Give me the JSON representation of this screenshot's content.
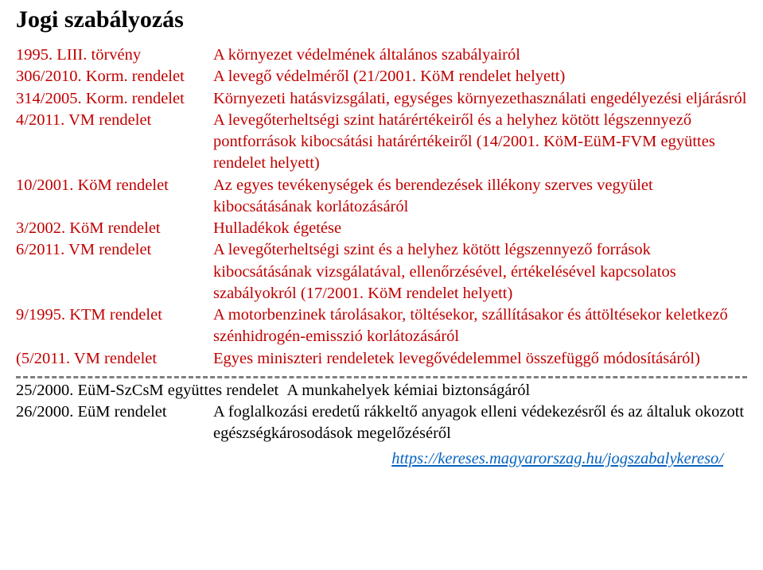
{
  "title": "Jogi szabályozás",
  "regs": [
    {
      "left": "1995. LIII. törvény",
      "right": "A környezet védelmének általános szabályairól",
      "leftColor": "#c00000",
      "rightColor": "#c00000"
    },
    {
      "left": "306/2010. Korm. rendelet",
      "right": "A levegő védelméről (21/2001. KöM rendelet helyett)",
      "leftColor": "#c00000",
      "rightColor": "#c00000"
    },
    {
      "left": "314/2005. Korm. rendelet",
      "right": "Környezeti hatásvizsgálati, egységes környezethasználati engedélyezési eljárásról",
      "leftColor": "#c00000",
      "rightColor": "#c00000"
    },
    {
      "left": "4/2011. VM rendelet",
      "right": "A levegőterheltségi szint határértékeiről és a helyhez kötött légszennyező pontforrások kibocsátási határértékeiről (14/2001. KöM-EüM-FVM együttes rendelet helyett)",
      "leftColor": "#c00000",
      "rightColor": "#c00000"
    },
    {
      "left": "10/2001. KöM rendelet",
      "right": "Az egyes tevékenységek és berendezések illékony szerves vegyület kibocsátásának korlátozásáról",
      "leftColor": "#c00000",
      "rightColor": "#c00000"
    },
    {
      "left": "3/2002. KöM rendelet",
      "right": "Hulladékok égetése",
      "leftColor": "#c00000",
      "rightColor": "#c00000"
    },
    {
      "left": "6/2011. VM rendelet",
      "right": "A levegőterheltségi szint és a helyhez kötött légszennyező források kibocsátásának vizsgálatával, ellenőrzésével, értékelésével kapcsolatos szabályokról  (17/2001. KöM rendelet helyett)",
      "leftColor": "#c00000",
      "rightColor": "#c00000"
    },
    {
      "left": "9/1995. KTM rendelet",
      "right": "A motorbenzinek tárolásakor, töltésekor, szállításakor és áttöltésekor keletkező szénhidrogén-emisszió korlátozásáról",
      "leftColor": "#c00000",
      "rightColor": "#c00000"
    },
    {
      "left": "(5/2011. VM rendelet",
      "right": "Egyes miniszteri rendeletek levegővédelemmel összefüggő módosításáról)",
      "leftColor": "#c00000",
      "rightColor": "#c00000"
    }
  ],
  "post": [
    {
      "left": "25/2000. EüM-SzCsM együttes rendelet",
      "right": "A munkahelyek kémiai biztonságáról",
      "leftColor": "#000000",
      "rightColor": "#000000",
      "leftWidth": 395,
      "oneLine": true
    },
    {
      "left": "26/2000. EüM rendelet",
      "right": "A foglalkozási eredetű rákkeltő anyagok elleni védekezésről és az általuk okozott egészségkárosodások megelőzéséről",
      "leftColor": "#000000",
      "rightColor": "#000000"
    }
  ],
  "footerLink": {
    "text": "https://kereses.magyarorszag.hu/jogszabalykereso/",
    "color": "#0563c1"
  },
  "style": {
    "titleFontSize": 30,
    "bodyFontSize": 20.5,
    "titleColor": "#000000",
    "redColor": "#c00000",
    "blackColor": "#000000",
    "bgColor": "#ffffff",
    "leftColWidth": 248,
    "dividerColor": "#7f7f7f",
    "dividerStyle": "dashed",
    "dividerThickness": 3,
    "linkColor": "#0563c1",
    "pageWidth": 959,
    "pageHeight": 717
  }
}
